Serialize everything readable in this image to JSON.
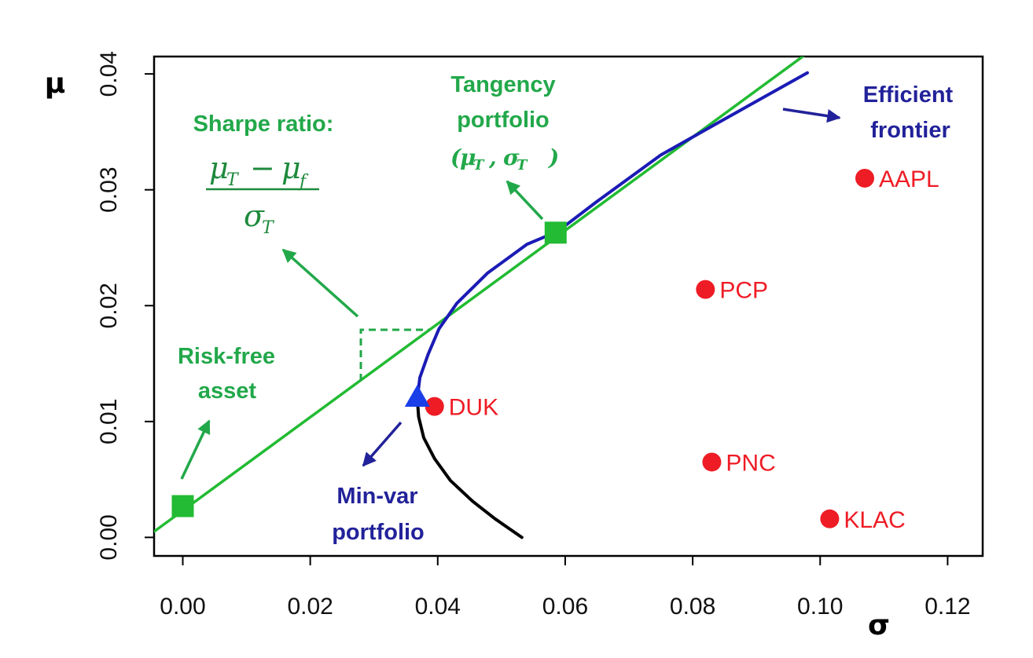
{
  "chart_data": {
    "type": "scatter",
    "xlabel": "σ",
    "ylabel": "μ",
    "xlim": [
      -0.0045,
      0.1255
    ],
    "ylim": [
      -0.0016,
      0.0415
    ],
    "x_ticks": [
      "0.00",
      "0.02",
      "0.04",
      "0.06",
      "0.08",
      "0.10",
      "0.12"
    ],
    "y_ticks": [
      "0.00",
      "0.01",
      "0.02",
      "0.03",
      "0.04"
    ],
    "grid": false,
    "points": [
      {
        "label": "AAPL",
        "x": 0.107,
        "y": 0.031
      },
      {
        "label": "PCP",
        "x": 0.082,
        "y": 0.0214
      },
      {
        "label": "DUK",
        "x": 0.0395,
        "y": 0.0113
      },
      {
        "label": "PNC",
        "x": 0.083,
        "y": 0.0065
      },
      {
        "label": "KLAC",
        "x": 0.1015,
        "y": 0.0016
      }
    ],
    "series": [
      {
        "kind": "line",
        "x": [
          -0.0045,
          0.098
        ],
        "y": [
          0.0005,
          0.0418
        ]
      },
      {
        "kind": "frontier-efficient",
        "x": [
          0.0368,
          0.0372,
          0.0385,
          0.0402,
          0.043,
          0.0478,
          0.054,
          0.0588,
          0.065,
          0.075,
          0.085,
          0.098
        ],
        "y": [
          0.012,
          0.0138,
          0.0158,
          0.018,
          0.0202,
          0.0228,
          0.0253,
          0.0264,
          0.029,
          0.033,
          0.0361,
          0.0401
        ]
      },
      {
        "kind": "frontier-inefficient",
        "x": [
          0.0368,
          0.037,
          0.0378,
          0.0395,
          0.042,
          0.0455,
          0.049,
          0.0532
        ],
        "y": [
          0.012,
          0.0104,
          0.0086,
          0.0068,
          0.0049,
          0.0031,
          0.0016,
          0.0
        ]
      }
    ],
    "special_points": [
      {
        "name": "risk-free",
        "x": 0.0,
        "y": 0.0027
      },
      {
        "name": "tangency",
        "x": 0.0585,
        "y": 0.0263
      },
      {
        "name": "min-var",
        "x": 0.0368,
        "y": 0.012
      }
    ],
    "annotations": {
      "sharpe_title": "Sharpe ratio:",
      "sharpe_num_mu_t": "μ",
      "sharpe_num_t_sub": "T",
      "sharpe_minus": "−",
      "sharpe_num_mu_f": "μ",
      "sharpe_num_f_sub": "f",
      "sharpe_den_sigma": "σ",
      "sharpe_den_t_sub": "T",
      "tangency_line1": "Tangency",
      "tangency_line2": "portfolio",
      "tangency_mu": "μ",
      "tangency_t1": "T",
      "tangency_sigma": "σ",
      "tangency_t2": "T",
      "efficient_line1": "Efficient",
      "efficient_line2": "frontier",
      "riskfree_line1": "Risk-free",
      "riskfree_line2": "asset",
      "minvar_line1": "Min-var",
      "minvar_line2": "portfolio"
    },
    "colors": {
      "green": "#22bb33",
      "annotation_green": "#22a84a",
      "frontier_blue": "#1b1bb5",
      "frontier_black": "#000000",
      "stock_red": "#ee1c25",
      "minvar_triangle": "#1a3ee8",
      "arrow_navy": "#22229a"
    }
  }
}
